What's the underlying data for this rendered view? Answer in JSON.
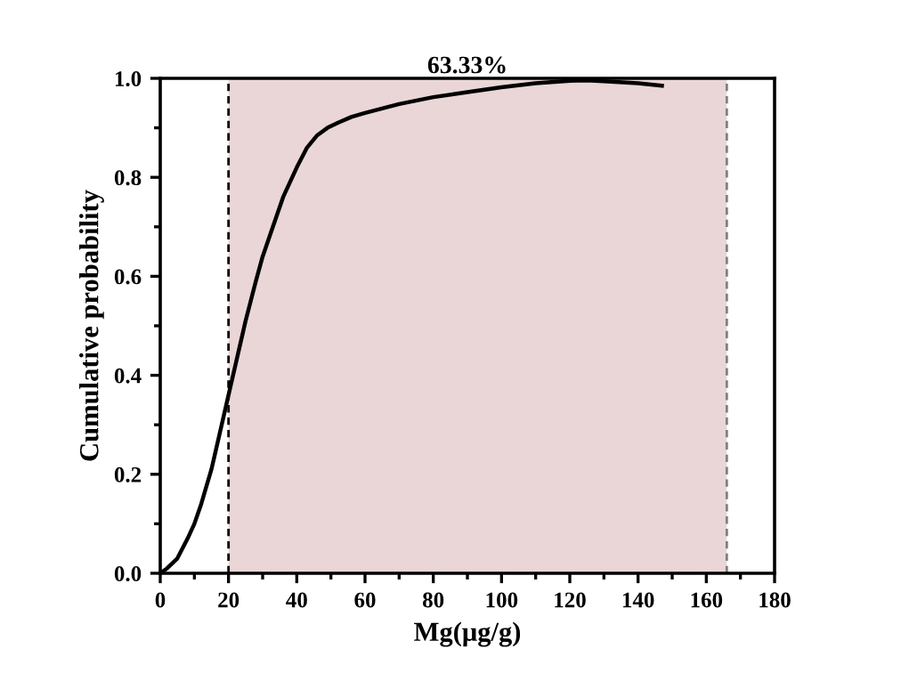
{
  "chart_data": {
    "type": "line",
    "title": "63.33%",
    "xlabel": "Mg(μg/g)",
    "ylabel": "Cumulative probability",
    "x": [
      0,
      2,
      5,
      8,
      10,
      12,
      15,
      18,
      20,
      22,
      25,
      28,
      30,
      33,
      36,
      40,
      43,
      46,
      49,
      52,
      56,
      60,
      70,
      80,
      90,
      100,
      110,
      120,
      125,
      130,
      140,
      147
    ],
    "series": [
      {
        "color": "#000000",
        "values": [
          0,
          0.01,
          0.03,
          0.07,
          0.1,
          0.14,
          0.21,
          0.3,
          0.36,
          0.42,
          0.51,
          0.59,
          0.64,
          0.7,
          0.76,
          0.82,
          0.86,
          0.885,
          0.9,
          0.91,
          0.922,
          0.93,
          0.948,
          0.962,
          0.972,
          0.982,
          0.99,
          0.995,
          0.996,
          0.994,
          0.99,
          0.985
        ]
      }
    ],
    "xlim": [
      0,
      180
    ],
    "xticks": [
      0,
      20,
      40,
      60,
      80,
      100,
      120,
      140,
      160,
      180
    ],
    "ylim": [
      0,
      1.0
    ],
    "yticks": [
      {
        "value": 0,
        "label": "0.0"
      },
      0.2,
      0.4,
      0.6,
      0.8,
      {
        "value": 1,
        "label": "1.0"
      }
    ],
    "bands": [
      {
        "axis": "x",
        "from": 20,
        "to": 166,
        "color": "#ead6d6"
      }
    ],
    "ref_lines": [
      {
        "axis": "x",
        "value": 20,
        "color": "#000000",
        "line_style": "dashed"
      },
      {
        "axis": "x",
        "value": 166,
        "color": "#808080",
        "line_style": "dashed"
      }
    ],
    "grid": false,
    "legend": false,
    "marker": "none",
    "line_style": "solid"
  }
}
